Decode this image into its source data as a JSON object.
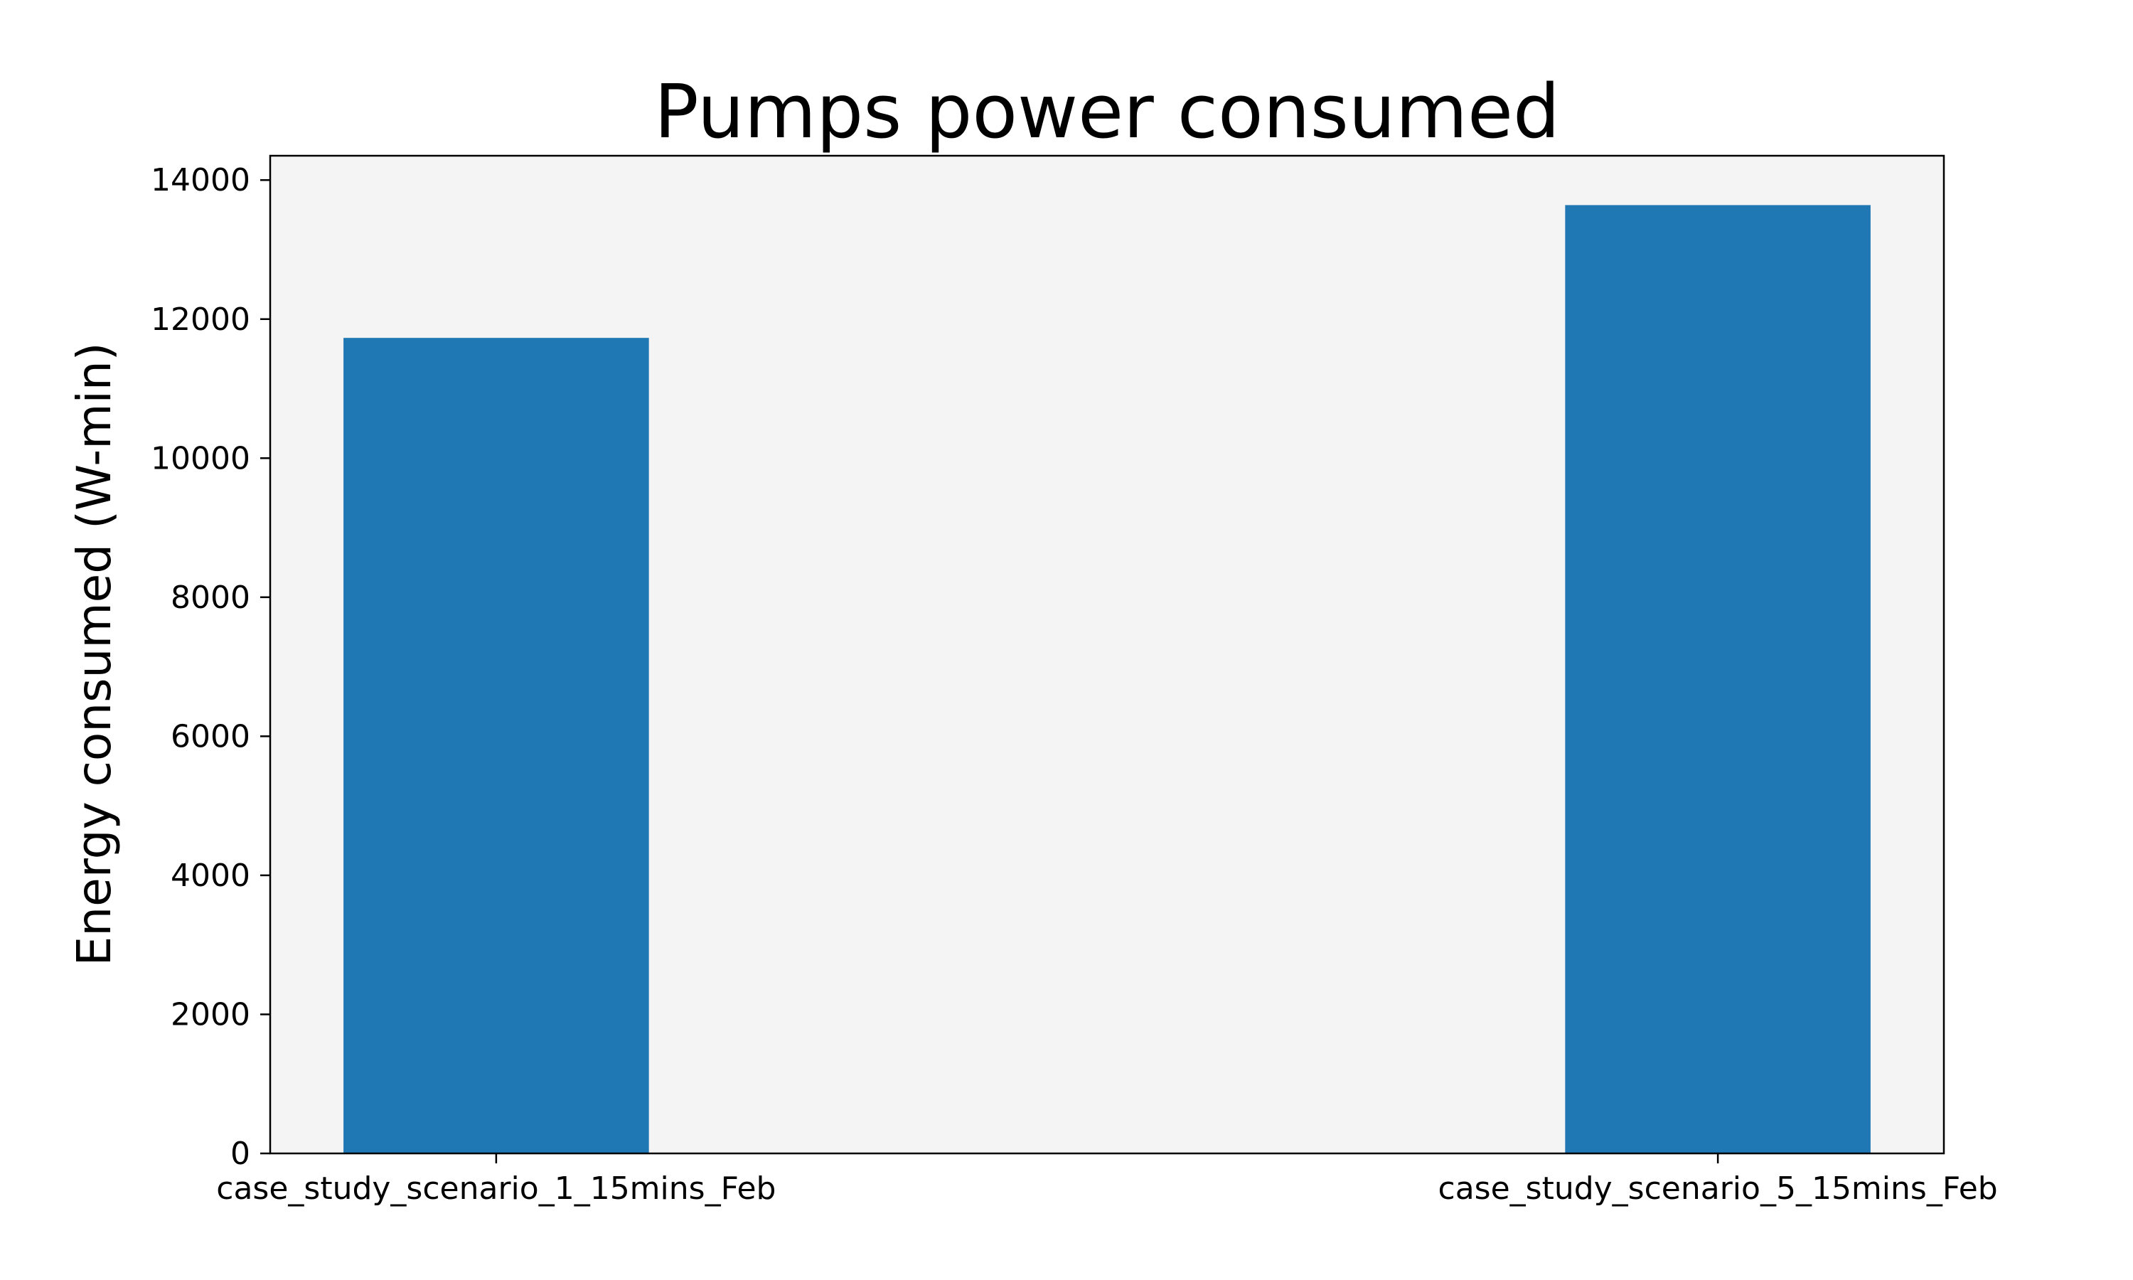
{
  "chart_data": {
    "type": "bar",
    "title": "Pumps power consumed",
    "xlabel": "",
    "ylabel": "Energy consumed (W-min)",
    "categories": [
      "case_study_scenario_1_15mins_Feb",
      "case_study_scenario_5_15mins_Feb"
    ],
    "values": [
      11730,
      13640
    ],
    "ylim": [
      0,
      14350
    ],
    "yticks": [
      0,
      2000,
      4000,
      6000,
      8000,
      10000,
      12000,
      14000
    ],
    "ytick_labels": [
      "0",
      "2000",
      "4000",
      "6000",
      "8000",
      "10000",
      "12000",
      "14000"
    ],
    "grid": false,
    "legend": "none",
    "bar_color": "#1f77b4",
    "plot_background": "#f4f4f4"
  }
}
